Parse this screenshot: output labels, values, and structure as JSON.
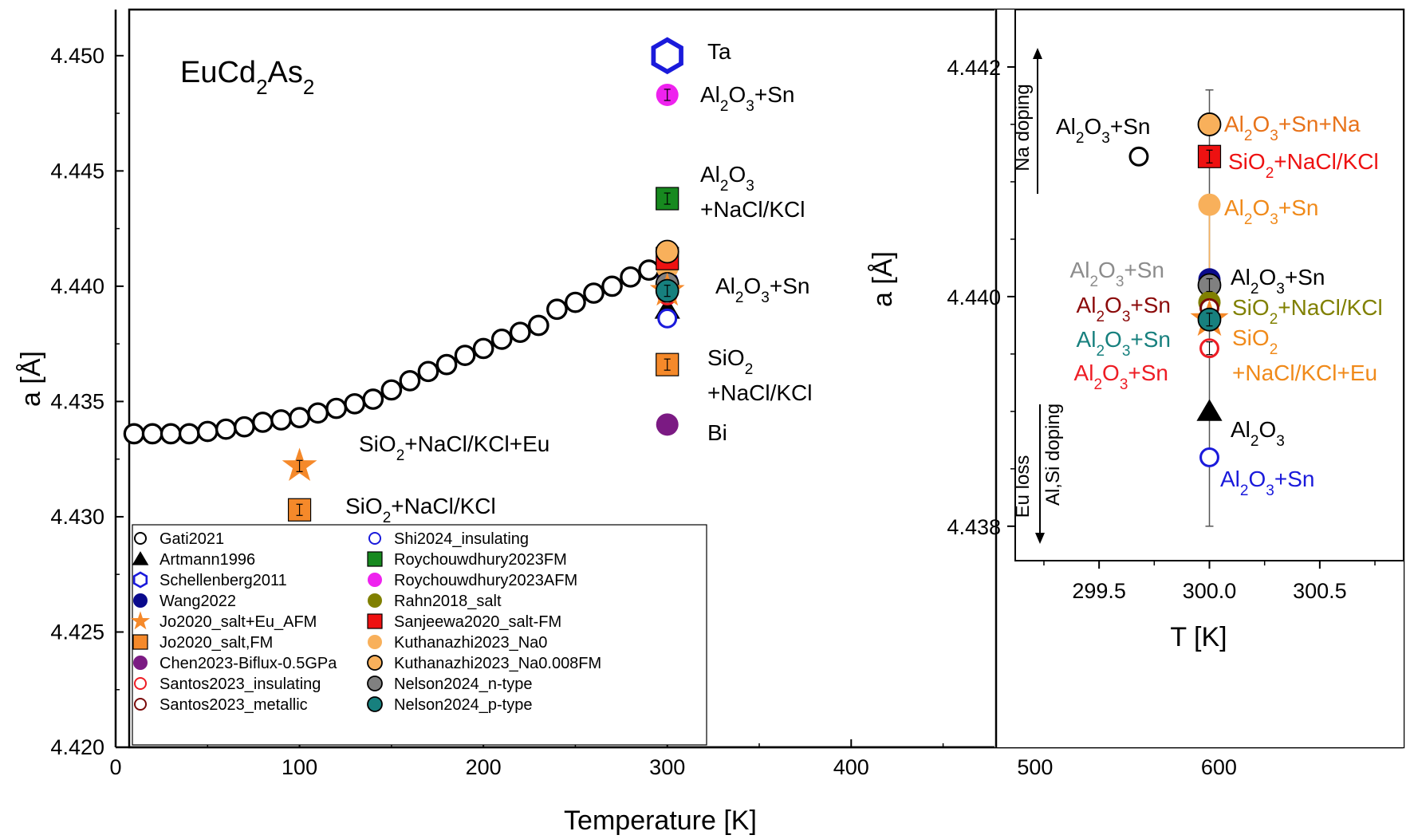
{
  "chart_data": [
    {
      "type": "scatter",
      "id": "main",
      "title": "EuCd2As2",
      "xlabel": "Temperature [K]",
      "ylabel": "a [Å]",
      "xlim": [
        0,
        700
      ],
      "ylim": [
        4.42,
        4.452
      ],
      "xticks": [
        0,
        100,
        200,
        300,
        400,
        500,
        600
      ],
      "yticks": [
        4.42,
        4.425,
        4.43,
        4.435,
        4.44,
        4.445,
        4.45
      ],
      "ytick_labels": [
        "4.420",
        "4.425",
        "4.430",
        "4.435",
        "4.440",
        "4.445",
        "4.450"
      ],
      "series": [
        {
          "name": "Gati2021",
          "marker": "circle-open",
          "color": "#000000",
          "x": [
            10,
            20,
            30,
            40,
            50,
            60,
            70,
            80,
            90,
            100,
            110,
            120,
            130,
            140,
            150,
            160,
            170,
            180,
            190,
            200,
            210,
            220,
            230,
            240,
            250,
            260,
            270,
            280,
            290
          ],
          "y": [
            4.4336,
            4.4336,
            4.4336,
            4.4336,
            4.4337,
            4.4338,
            4.4339,
            4.4341,
            4.4342,
            4.4343,
            4.4345,
            4.4347,
            4.4349,
            4.4351,
            4.4355,
            4.4359,
            4.4363,
            4.4366,
            4.437,
            4.4373,
            4.4377,
            4.438,
            4.4383,
            4.439,
            4.4393,
            4.4397,
            4.44,
            4.4404,
            4.4407
          ]
        },
        {
          "name": "Artmann1996",
          "marker": "triangle",
          "color": "#000000",
          "x": [
            300
          ],
          "y": [
            4.439
          ]
        },
        {
          "name": "Schellenberg2011",
          "marker": "hexagon-open",
          "color": "#1a1adb",
          "x": [
            300
          ],
          "y": [
            4.45
          ]
        },
        {
          "name": "Wang2022",
          "marker": "circle",
          "color": "#0a0a8c",
          "x": [
            300
          ],
          "y": [
            4.4402
          ]
        },
        {
          "name": "Jo2020_salt+Eu_AFM",
          "marker": "star",
          "color": "#f5892a",
          "x": [
            100,
            300
          ],
          "y": [
            4.4322,
            4.4398
          ]
        },
        {
          "name": "Jo2020_salt,FM",
          "marker": "square",
          "color": "#f5892a",
          "x": [
            100,
            300
          ],
          "y": [
            4.4303,
            4.4366
          ]
        },
        {
          "name": "Chen2023-Biflux-0.5GPa",
          "marker": "circle",
          "color": "#7b1a83",
          "x": [
            300
          ],
          "y": [
            4.434
          ]
        },
        {
          "name": "Santos2023_insulating",
          "marker": "circle-open",
          "color": "#ee1c24",
          "x": [
            300
          ],
          "y": [
            4.4396
          ]
        },
        {
          "name": "Santos2023_metallic",
          "marker": "circle-open",
          "color": "#7a0a0a",
          "x": [
            300
          ],
          "y": [
            4.4399
          ]
        },
        {
          "name": "Shi2024_insulating",
          "marker": "circle-open",
          "color": "#1a1adb",
          "x": [
            300
          ],
          "y": [
            4.4386
          ]
        },
        {
          "name": "Roychouwdhury2023FM",
          "marker": "square",
          "color": "#17891f",
          "x": [
            300
          ],
          "y": [
            4.4438
          ]
        },
        {
          "name": "Roychouwdhury2023AFM",
          "marker": "circle",
          "color": "#ee22ee",
          "x": [
            300
          ],
          "y": [
            4.4483
          ]
        },
        {
          "name": "Rahn2018_salt",
          "marker": "circle",
          "color": "#808000",
          "x": [
            300
          ],
          "y": [
            4.44
          ]
        },
        {
          "name": "Sanjeewa2020_salt-FM",
          "marker": "square",
          "color": "#ee1111",
          "x": [
            300
          ],
          "y": [
            4.4412
          ]
        },
        {
          "name": "Kuthanazhi2023_Na0",
          "marker": "circle",
          "color": "#f8b05b",
          "x": [
            300
          ],
          "y": [
            4.4408
          ]
        },
        {
          "name": "Kuthanazhi2023_Na0.008FM",
          "marker": "circle-edge",
          "color": "#f8b05b",
          "x": [
            300
          ],
          "y": [
            4.4415
          ]
        },
        {
          "name": "Nelson2024_n-type",
          "marker": "circle-edge",
          "color": "#808080",
          "x": [
            300
          ],
          "y": [
            4.4401
          ]
        },
        {
          "name": "Nelson2024_p-type",
          "marker": "circle-edge",
          "color": "#17807e",
          "x": [
            300
          ],
          "y": [
            4.4398
          ]
        }
      ],
      "legend_location": "bottom-left",
      "annotations": [
        {
          "text": "Ta",
          "color": "#000000"
        },
        {
          "text": "Al2O3+Sn",
          "color": "#000000"
        },
        {
          "text": "Al2O3 +NaCl/KCl",
          "color": "#000000"
        },
        {
          "text": "Al2O3+Sn",
          "color": "#000000"
        },
        {
          "text": "SiO2 +NaCl/KCl",
          "color": "#000000"
        },
        {
          "text": "Bi",
          "color": "#000000"
        },
        {
          "text": "SiO2+NaCl/KCl+Eu",
          "color": "#000000"
        },
        {
          "text": "SiO2+NaCl/KCl",
          "color": "#000000"
        }
      ]
    },
    {
      "type": "scatter",
      "id": "inset",
      "xlabel": "T [K]",
      "ylabel": "a [Å]",
      "xlim": [
        299.12,
        300.88
      ],
      "ylim": [
        4.4377,
        4.4425
      ],
      "xticks": [
        299.5,
        300.0,
        300.5
      ],
      "xtick_labels": [
        "299.5",
        "300.0",
        "300.5"
      ],
      "yticks": [
        4.438,
        4.44,
        4.442
      ],
      "ytick_labels": [
        "4.438",
        "4.440",
        "4.442"
      ],
      "points": [
        {
          "name": "Kuthanazhi2023_Na0.008FM",
          "x": 300.0,
          "y": 4.4415,
          "label": "Al2O3+Sn+Na",
          "label_color": "#e8731a"
        },
        {
          "name": "Sanjeewa2020_salt-FM",
          "x": 300.0,
          "y": 4.44122,
          "label": "SiO2+NaCl/KCl",
          "label_color": "#ee1111"
        },
        {
          "name": "Kuthanazhi2023_Na0",
          "x": 300.0,
          "y": 4.4408,
          "label": "Al2O3+Sn",
          "label_color": "#f08a1a"
        },
        {
          "name": "Wang2022",
          "x": 300.0,
          "y": 4.44015,
          "label": "Al2O3+Sn",
          "label_color": "#000000"
        },
        {
          "name": "Nelson2024_n-type",
          "x": 300.0,
          "y": 4.4401,
          "label": "Al2O3+Sn",
          "label_color": "#8c8c8c"
        },
        {
          "name": "Rahn2018_salt",
          "x": 300.0,
          "y": 4.43995,
          "label": "SiO2+NaCl/KCl",
          "label_color": "#808000"
        },
        {
          "name": "Santos2023_metallic",
          "x": 300.0,
          "y": 4.4399,
          "label": "Al2O3+Sn",
          "label_color": "#8b0a0a"
        },
        {
          "name": "Nelson2024_p-type",
          "x": 300.0,
          "y": 4.4398,
          "label": "Al2O3+Sn",
          "label_color": "#17807e"
        },
        {
          "name": "Jo2020_salt+Eu_AFM",
          "x": 300.0,
          "y": 4.4398,
          "label": "SiO2 +NaCl/KCl+Eu",
          "label_color": "#f08a1a"
        },
        {
          "name": "Santos2023_insulating",
          "x": 300.0,
          "y": 4.43955,
          "label": "Al2O3+Sn",
          "label_color": "#ee1c24"
        },
        {
          "name": "Artmann1996",
          "x": 300.0,
          "y": 4.439,
          "label": "Al2O3",
          "label_color": "#000000"
        },
        {
          "name": "Shi2024_insulating",
          "x": 300.0,
          "y": 4.4386,
          "label": "Al2O3+Sn",
          "label_color": "#1a1adb"
        },
        {
          "name": "open-black",
          "x": 299.68,
          "y": 4.44122,
          "label": "Al2O3+Sn",
          "label_color": "#000000"
        }
      ],
      "errorbar": {
        "x": 300.0,
        "ymin": 4.438,
        "ymax": 4.4418
      },
      "arrows": [
        {
          "direction": "up",
          "label": "Na doping"
        },
        {
          "direction": "down",
          "label": "Eu loss",
          "label2": "Al,Si doping"
        }
      ]
    }
  ],
  "legend": {
    "col1": [
      "Gati2021",
      "Artmann1996",
      "Schellenberg2011",
      "Wang2022",
      "Jo2020_salt+Eu_AFM",
      "Jo2020_salt,FM",
      "Chen2023-Biflux-0.5GPa",
      "Santos2023_insulating",
      "Santos2023_metallic"
    ],
    "col2": [
      "Shi2024_insulating",
      "Roychouwdhury2023FM",
      "Roychouwdhury2023AFM",
      "Rahn2018_salt",
      "Sanjeewa2020_salt-FM",
      "Kuthanazhi2023_Na0",
      "Kuthanazhi2023_Na0.008FM",
      "Nelson2024_n-type",
      "Nelson2024_p-type"
    ]
  },
  "colors": {
    "axis": "#000000",
    "background": "#ffffff"
  }
}
